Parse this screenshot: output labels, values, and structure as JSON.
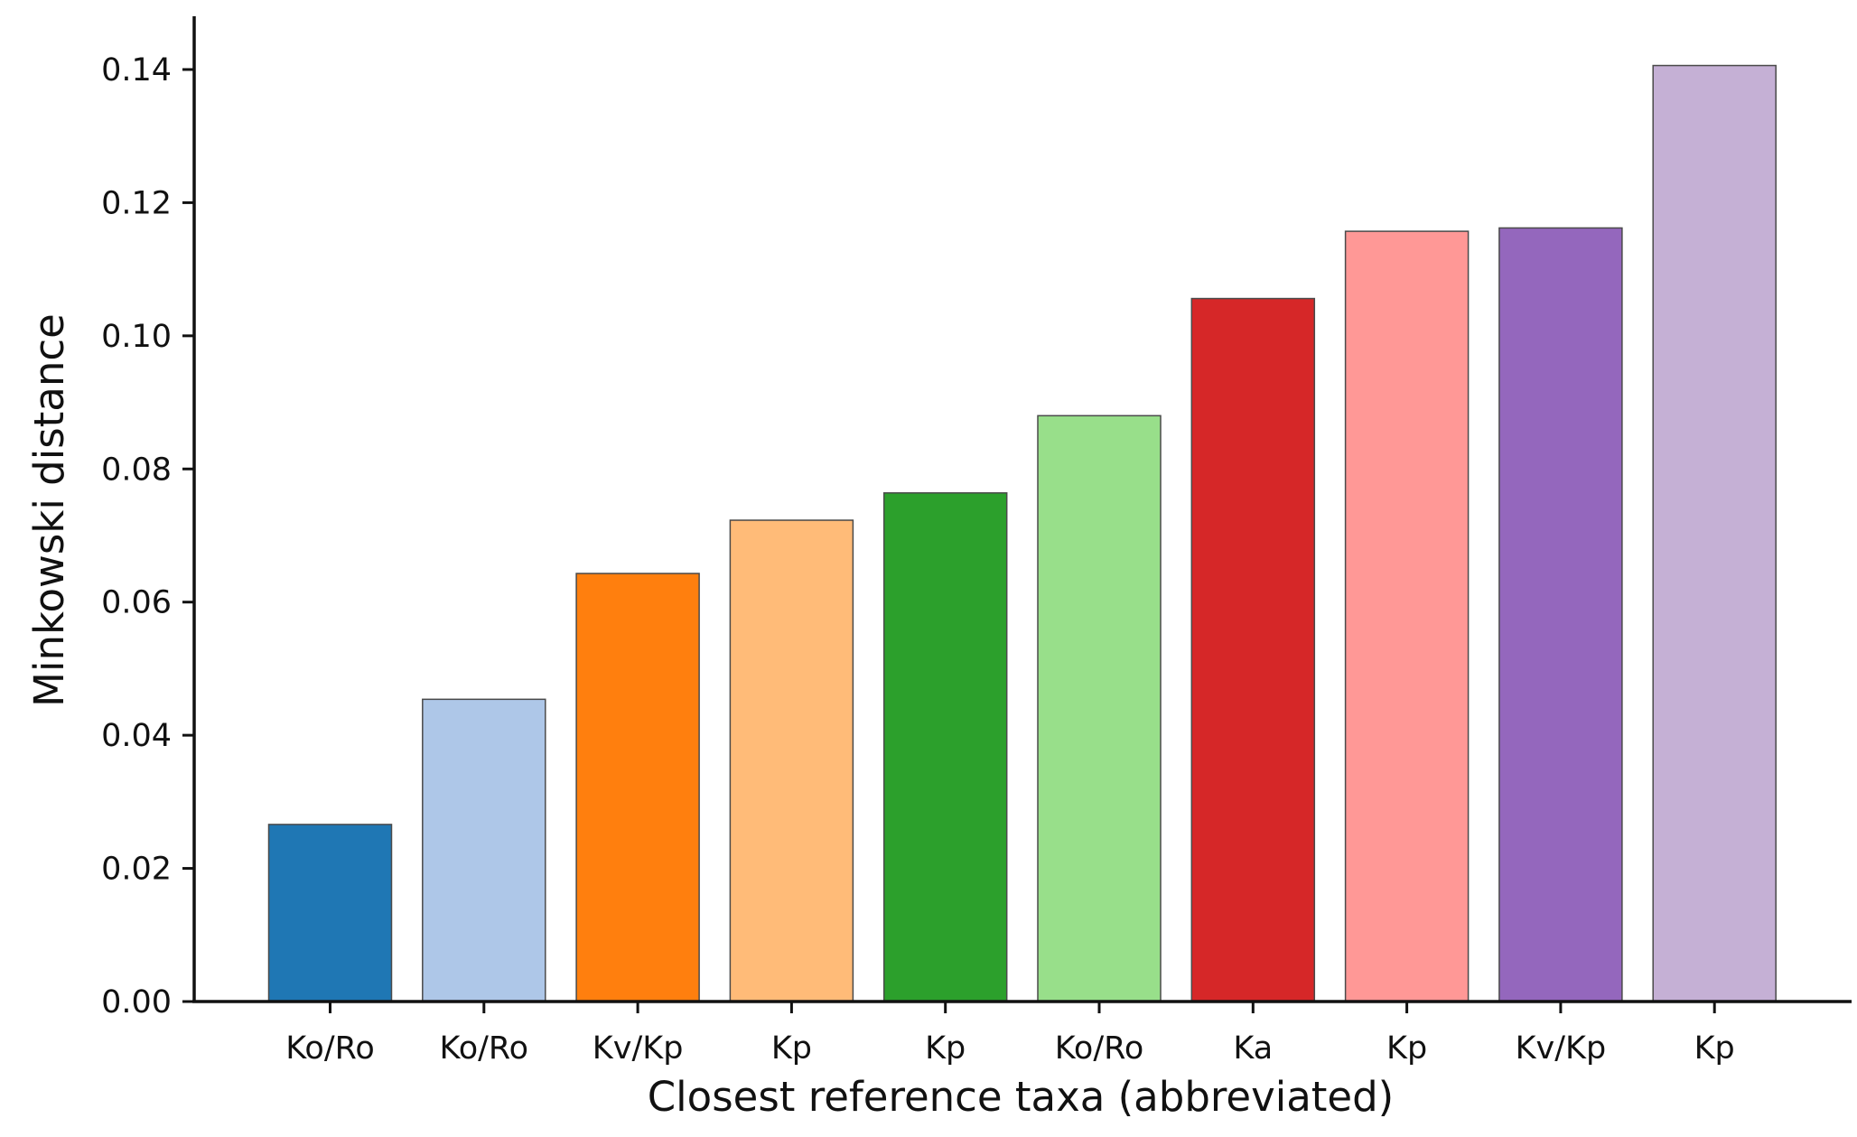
{
  "chart_data": {
    "type": "bar",
    "title": "",
    "xlabel": "Closest reference taxa (abbreviated)",
    "ylabel": "Minkowski distance",
    "ylim": [
      0,
      0.148
    ],
    "yticks": [
      "0.00",
      "0.02",
      "0.04",
      "0.06",
      "0.08",
      "0.10",
      "0.12",
      "0.14"
    ],
    "ytick_values": [
      0.0,
      0.02,
      0.04,
      0.06,
      0.08,
      0.1,
      0.12,
      0.14
    ],
    "categories": [
      "Ko/Ro",
      "Ko/Ro",
      "Kv/Kp",
      "Kp",
      "Kp",
      "Ko/Ro",
      "Ka",
      "Kp",
      "Kv/Kp",
      "Kp"
    ],
    "values": [
      0.0266,
      0.0454,
      0.0643,
      0.0723,
      0.0764,
      0.088,
      0.1056,
      0.1157,
      0.1162,
      0.1406
    ],
    "colors": [
      "#1f77b4",
      "#aec7e8",
      "#ff7f0e",
      "#ffbb78",
      "#2ca02c",
      "#98df8a",
      "#d62728",
      "#ff9896",
      "#9467bd",
      "#c5b0d5"
    ],
    "grid": false,
    "legend": "none"
  }
}
